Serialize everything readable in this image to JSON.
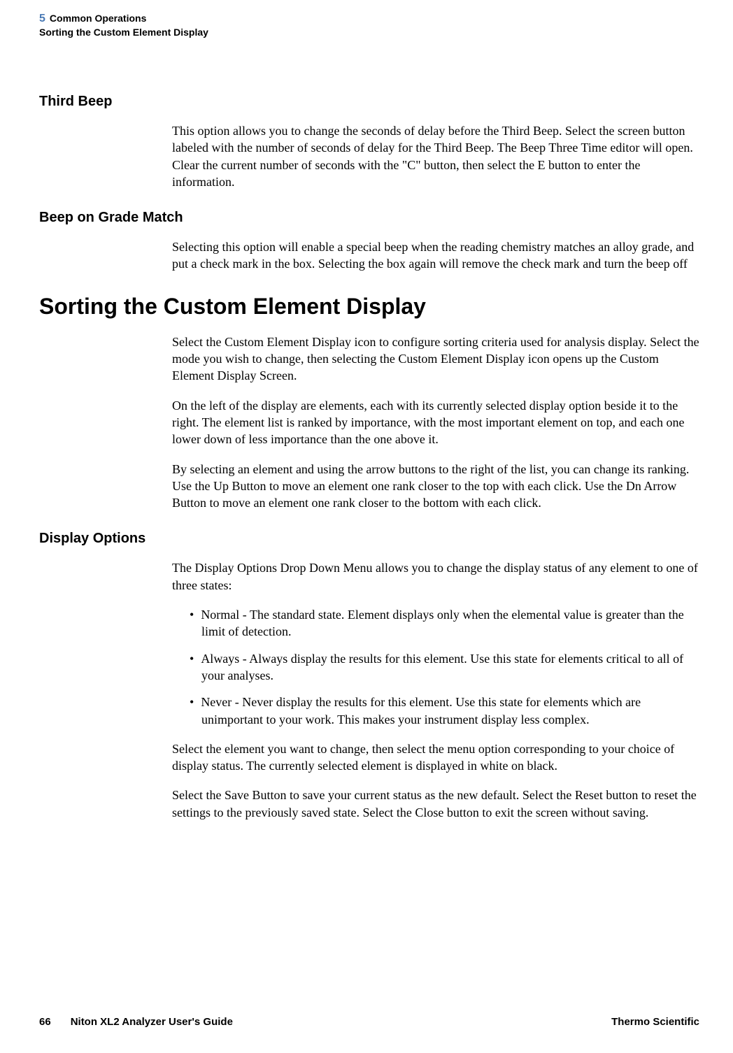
{
  "header": {
    "chapter_number": "5",
    "chapter_title": "Common Operations",
    "section_title": "Sorting the Custom Element Display"
  },
  "colors": {
    "chapter_number": "#4a7ab5",
    "text": "#000000",
    "background": "#ffffff"
  },
  "typography": {
    "h1_fontsize": 32,
    "h2_fontsize": 20,
    "body_fontsize": 18,
    "header_fontsize": 14,
    "footer_fontsize": 15,
    "heading_family": "Arial",
    "body_family": "Georgia"
  },
  "sections": {
    "third_beep": {
      "heading": "Third Beep",
      "p1": "This option allows you to change the seconds of delay before the Third Beep. Select the screen button labeled with the number of seconds of delay for the Third Beep. The Beep Three Time editor will open. Clear the current number of seconds with the \"C\" button, then select the E button to enter the information."
    },
    "beep_grade": {
      "heading": "Beep on Grade Match",
      "p1": "Selecting this option will enable a special beep when the reading chemistry matches an alloy grade, and put a check mark in the box. Selecting the box again will remove the check mark and turn the beep off"
    },
    "sorting": {
      "heading": "Sorting the Custom Element Display",
      "p1": "Select the Custom Element Display icon to configure sorting criteria used for analysis display. Select the mode you wish to change, then selecting the Custom Element Display icon opens up the Custom Element Display Screen.",
      "p2": "On the left of the display are elements, each with its currently selected display option beside it to the right. The element list is ranked by importance, with the most important element on top, and each one lower down of less importance than the one above it.",
      "p3": "By selecting an element and using the arrow buttons to the right of the list, you can change its ranking. Use the Up Button to move an element one rank closer to the top with each click. Use the Dn Arrow Button to move an element one rank closer to the bottom with each click."
    },
    "display_options": {
      "heading": "Display Options",
      "intro": "The Display Options Drop Down Menu allows you to change the display status of any element to one of three states:",
      "bullets": {
        "b1": "Normal - The standard state. Element displays only when the elemental value is greater than the limit of detection.",
        "b2": "Always - Always display the results for this element. Use this state for elements critical to all of your analyses.",
        "b3": "Never - Never display the results for this element. Use this state for elements which are unimportant to your work. This makes your instrument display less complex."
      },
      "p_after1": "Select the element you want to change, then select the menu option corresponding to your choice of display status. The currently selected element is displayed in white on black.",
      "p_after2": "Select the Save Button to save your current status as the new default. Select the Reset button to reset the settings to the previously saved state. Select the Close button to exit the screen without saving."
    }
  },
  "footer": {
    "page_number": "66",
    "guide_name": "Niton XL2 Analyzer User's Guide",
    "company": "Thermo Scientific"
  }
}
